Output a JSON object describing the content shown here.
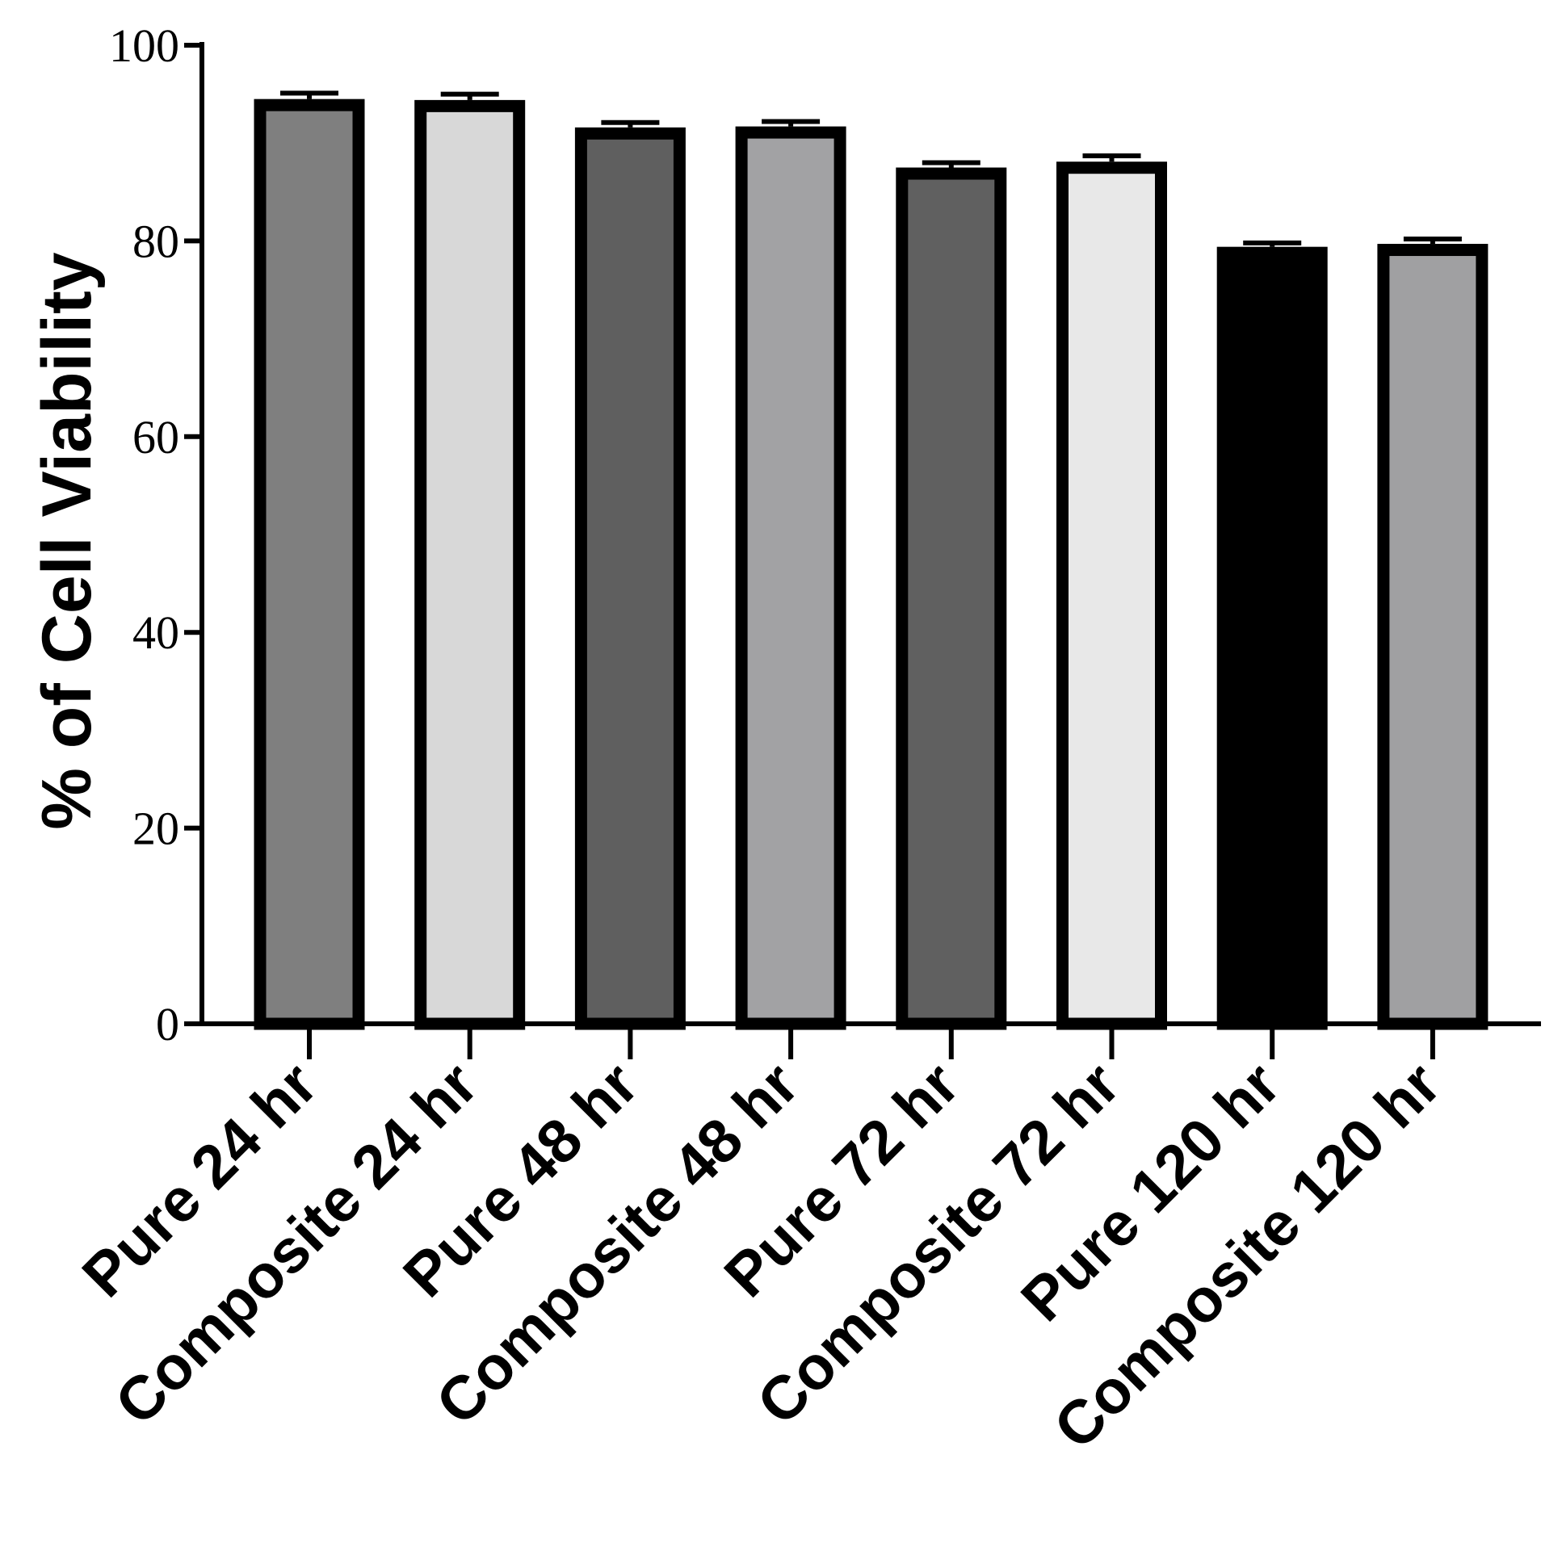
{
  "chart_data": {
    "type": "bar",
    "title": "",
    "xlabel": "",
    "ylabel": "% of Cell Viability",
    "ylim": [
      0,
      100
    ],
    "yticks": [
      0,
      20,
      40,
      60,
      80,
      100
    ],
    "grid": false,
    "categories": [
      "Pure 24 hr",
      "Composite 24 hr",
      "Pure 48 hr",
      "Composite 48 hr",
      "Pure 72 hr",
      "Composite 72 hr",
      "Pure 120 hr",
      "Composite 120 hr"
    ],
    "values": [
      94.5,
      94.4,
      91.6,
      91.7,
      87.5,
      88.1,
      79.4,
      79.7
    ],
    "errors": [
      0.6,
      0.6,
      0.5,
      0.5,
      0.5,
      0.6,
      0.4,
      0.5
    ],
    "colors": [
      "#7f7f7f",
      "#d8d8d8",
      "#5f5f5f",
      "#a2a2a4",
      "#606060",
      "#e8e8e8",
      "#000000",
      "#a0a0a2"
    ],
    "outline_color": "#000000"
  }
}
